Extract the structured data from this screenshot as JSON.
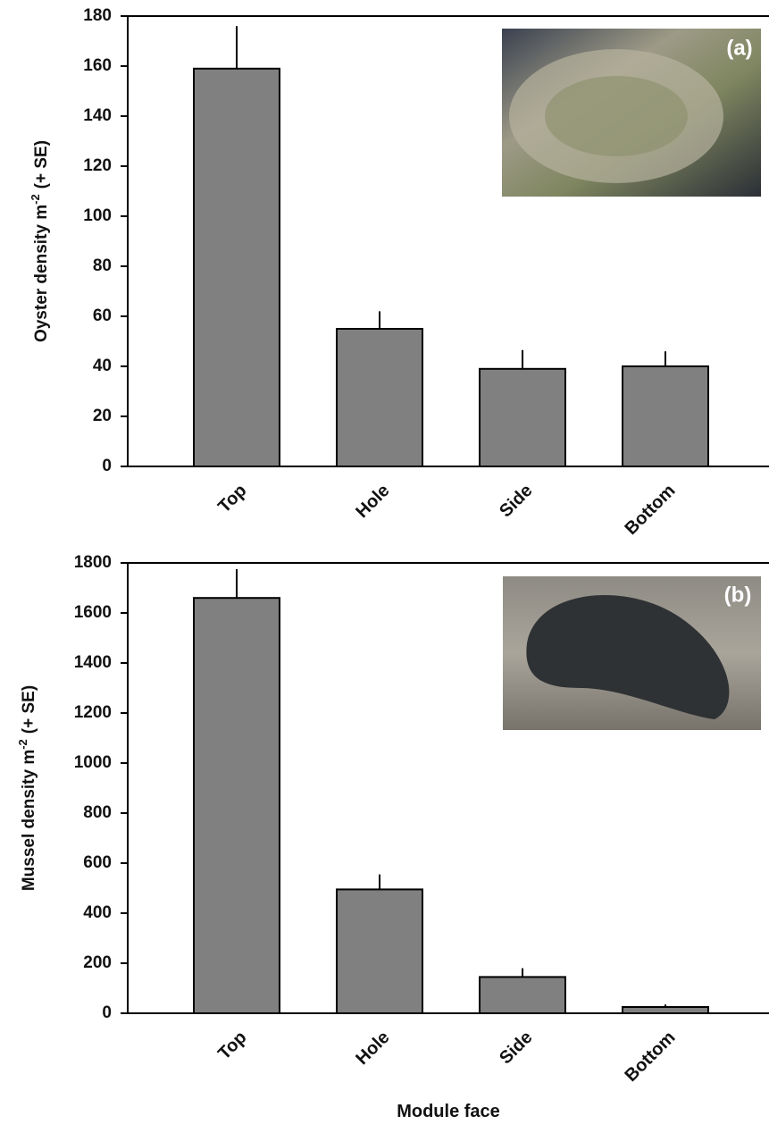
{
  "chart_data": [
    {
      "type": "bar",
      "panel_label": "(a)",
      "ylabel": {
        "text": "Oyster density m",
        "superscript": "-2",
        "suffix": "(+ SE)"
      },
      "categories": [
        "Top",
        "Hole",
        "Side",
        "Bottom"
      ],
      "values": [
        159,
        55,
        39,
        40
      ],
      "errors": [
        17,
        7,
        7.5,
        6
      ],
      "color": "#808080",
      "ylim": [
        0,
        180
      ],
      "yticks": [
        0,
        20,
        40,
        60,
        80,
        100,
        120,
        140,
        160,
        180
      ]
    },
    {
      "type": "bar",
      "panel_label": "(b)",
      "ylabel": {
        "text": "Mussel density m",
        "superscript": "-2",
        "suffix": "(+ SE)"
      },
      "xlabel": "Module face",
      "categories": [
        "Top",
        "Hole",
        "Side",
        "Bottom"
      ],
      "values": [
        1660,
        495,
        145,
        25
      ],
      "errors": [
        115,
        60,
        35,
        10
      ],
      "color": "#808080",
      "ylim": [
        0,
        1800
      ],
      "yticks": [
        0,
        200,
        400,
        600,
        800,
        1000,
        1200,
        1400,
        1600,
        1800
      ]
    }
  ]
}
